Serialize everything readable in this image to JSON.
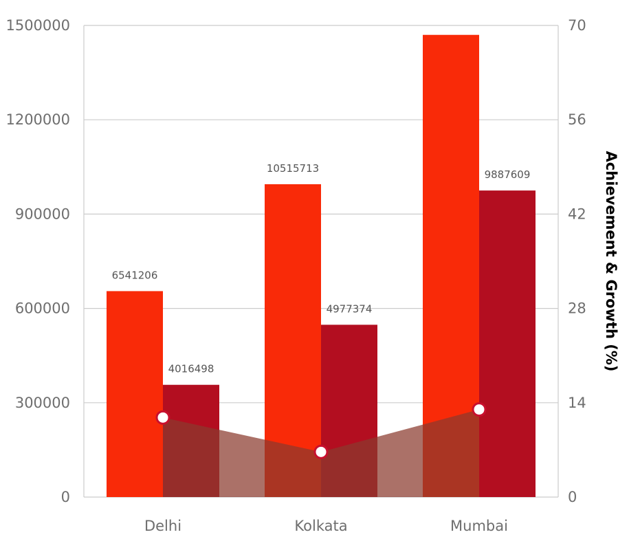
{
  "chart_data": {
    "type": "bar",
    "categories": [
      "Delhi",
      "Kolkata",
      "Mumbai"
    ],
    "series": [
      {
        "values": [
          655000,
          995000,
          1470000
        ],
        "labels": [
          "6541206",
          "10515713",
          ""
        ],
        "color": "#f92a08"
      },
      {
        "values": [
          357000,
          548000,
          975000
        ],
        "labels": [
          "4016498",
          "4977374",
          "9887609"
        ],
        "color": "#b30e20"
      },
      {
        "type": "area",
        "axis": "right",
        "values": [
          11.8,
          6.7,
          13.0
        ],
        "color": "#8b3a2e",
        "marker_fill": "#ffffff",
        "marker_stroke": "#c8102e"
      }
    ],
    "ylim": [
      0,
      1500000
    ],
    "yticks": [
      "0",
      "300000",
      "600000",
      "900000",
      "1200000",
      "1500000"
    ],
    "y2lim": [
      0,
      70
    ],
    "y2ticks": [
      "0",
      "14",
      "28",
      "42",
      "56",
      "70"
    ],
    "y2label": "Achievement & Growth (%)",
    "grid": true
  }
}
